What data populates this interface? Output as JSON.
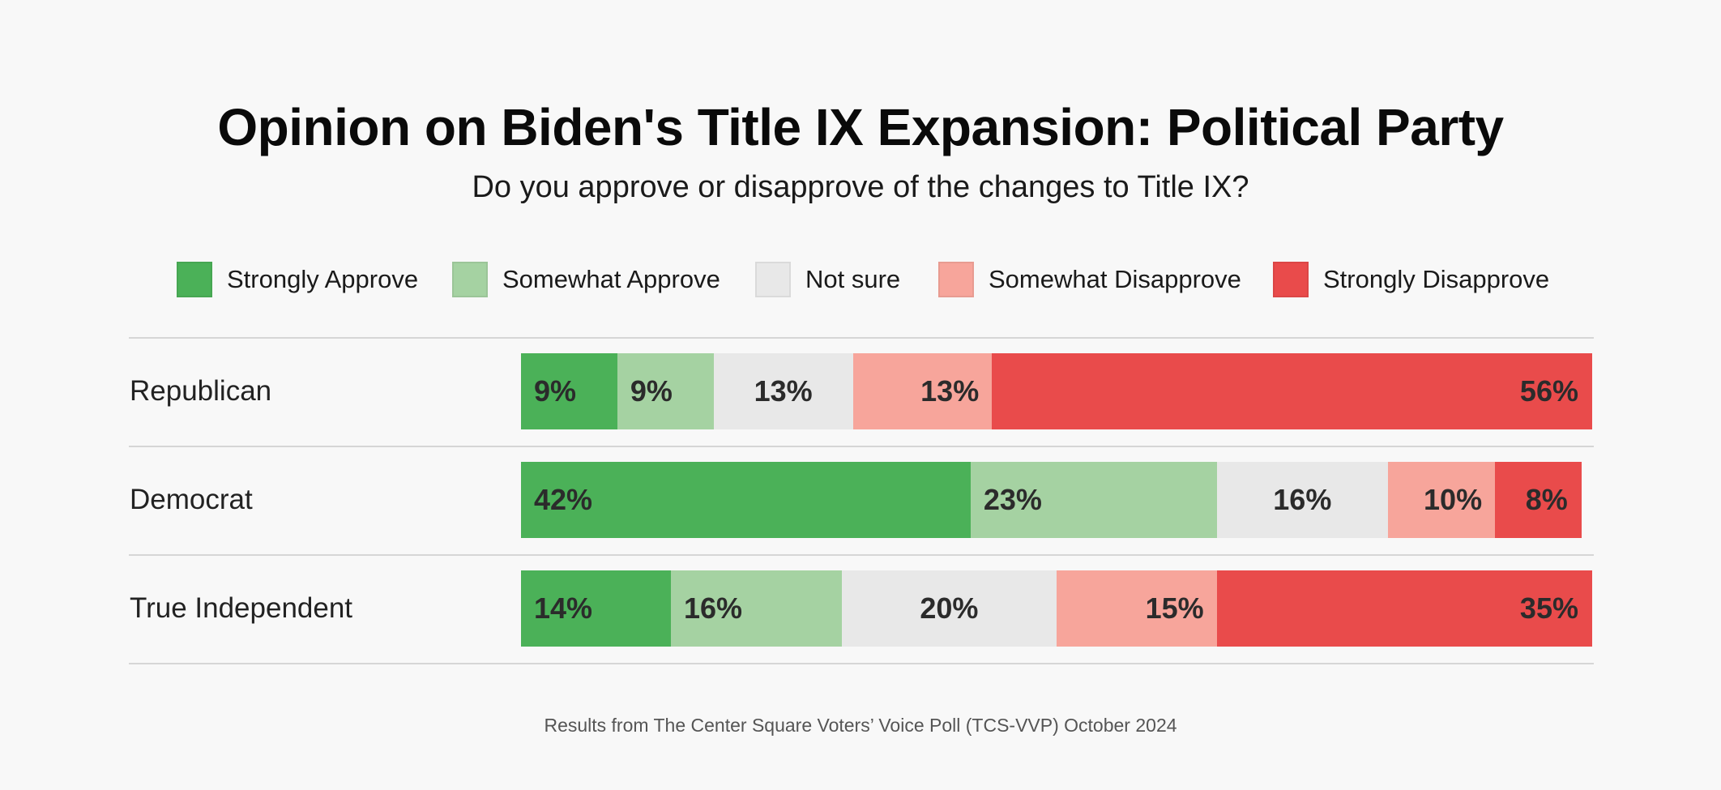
{
  "chart_data": {
    "type": "bar",
    "orientation": "horizontal",
    "stacked": true,
    "title": "Opinion on Biden's Title IX Expansion: Political Party",
    "subtitle": "Do you approve or disapprove of the changes to Title IX?",
    "categories": [
      "Republican",
      "Democrat",
      "True Independent"
    ],
    "series": [
      {
        "name": "Strongly Approve",
        "color": "#4bb158",
        "values": [
          9,
          42,
          14
        ]
      },
      {
        "name": "Somewhat Approve",
        "color": "#a5d2a2",
        "values": [
          9,
          23,
          16
        ]
      },
      {
        "name": "Not sure",
        "color": "#e8e8e8",
        "values": [
          13,
          16,
          20
        ]
      },
      {
        "name": "Somewhat Disapprove",
        "color": "#f7a59b",
        "values": [
          13,
          10,
          15
        ]
      },
      {
        "name": "Strongly Disapprove",
        "color": "#e94b4b",
        "values": [
          56,
          8,
          35
        ]
      }
    ],
    "value_suffix": "%",
    "legend_position": "top",
    "footnote": "Results from The Center Square Voters’ Voice Poll (TCS-VVP) October 2024"
  }
}
